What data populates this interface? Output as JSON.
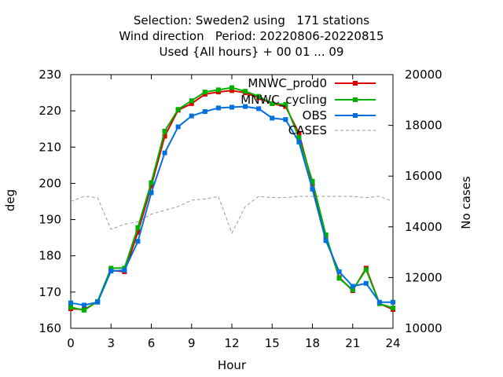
{
  "title_lines": [
    "Selection: Sweden2 using   171 stations",
    "Wind direction   Period: 20220806-20220815",
    "Used {All hours} + 00 01 ... 09"
  ],
  "chart_data": {
    "type": "line",
    "xlabel": "Hour",
    "ylabel": "deg",
    "y2label": "No cases",
    "xlim": [
      0,
      24
    ],
    "ylim": [
      160,
      230
    ],
    "y2lim": [
      10000,
      20000
    ],
    "xticks": [
      0,
      3,
      6,
      9,
      12,
      15,
      18,
      21,
      24
    ],
    "yticks": [
      160,
      170,
      180,
      190,
      200,
      210,
      220,
      230
    ],
    "y2ticks": [
      10000,
      12000,
      14000,
      16000,
      18000,
      20000
    ],
    "legend_position": "top-right",
    "grid": false,
    "x": [
      0,
      1,
      2,
      3,
      4,
      5,
      6,
      7,
      8,
      9,
      10,
      11,
      12,
      13,
      14,
      15,
      16,
      17,
      18,
      19,
      20,
      21,
      22,
      23,
      24
    ],
    "series": [
      {
        "name": "MNWC_prod0",
        "axis": "y",
        "color": "#e00000",
        "marker": "square",
        "values": [
          165.4,
          165.2,
          167.3,
          176.0,
          175.6,
          186.5,
          199.3,
          213.0,
          220.2,
          222.0,
          224.6,
          225.2,
          225.6,
          225.0,
          223.6,
          222.0,
          221.2,
          213.8,
          199.8,
          185.4,
          174.0,
          170.4,
          176.6,
          166.8,
          165.2
        ]
      },
      {
        "name": "MNWC_cycling",
        "axis": "y",
        "color": "#00b000",
        "marker": "square",
        "values": [
          165.8,
          165.0,
          167.4,
          176.6,
          176.6,
          187.8,
          200.2,
          214.4,
          220.4,
          222.8,
          225.2,
          225.8,
          226.4,
          225.4,
          224.0,
          222.0,
          221.8,
          212.6,
          200.6,
          185.8,
          173.8,
          170.6,
          176.2,
          166.8,
          165.6
        ]
      },
      {
        "name": "OBS",
        "axis": "y",
        "color": "#0070e0",
        "marker": "square",
        "values": [
          167.0,
          166.4,
          167.2,
          175.8,
          176.0,
          184.0,
          197.4,
          208.4,
          215.6,
          218.6,
          219.8,
          220.8,
          221.0,
          221.2,
          220.6,
          218.0,
          217.6,
          211.4,
          198.4,
          184.2,
          175.6,
          171.6,
          172.4,
          167.2,
          167.2
        ]
      },
      {
        "name": "CASES",
        "axis": "y2",
        "color": "#999999",
        "dashed": true,
        "values": [
          15000,
          15200,
          15150,
          13900,
          14100,
          14200,
          14500,
          14650,
          14800,
          15050,
          15100,
          15200,
          13750,
          14800,
          15200,
          15150,
          15150,
          15200,
          15200,
          15200,
          15200,
          15200,
          15150,
          15200,
          15000
        ]
      }
    ]
  }
}
